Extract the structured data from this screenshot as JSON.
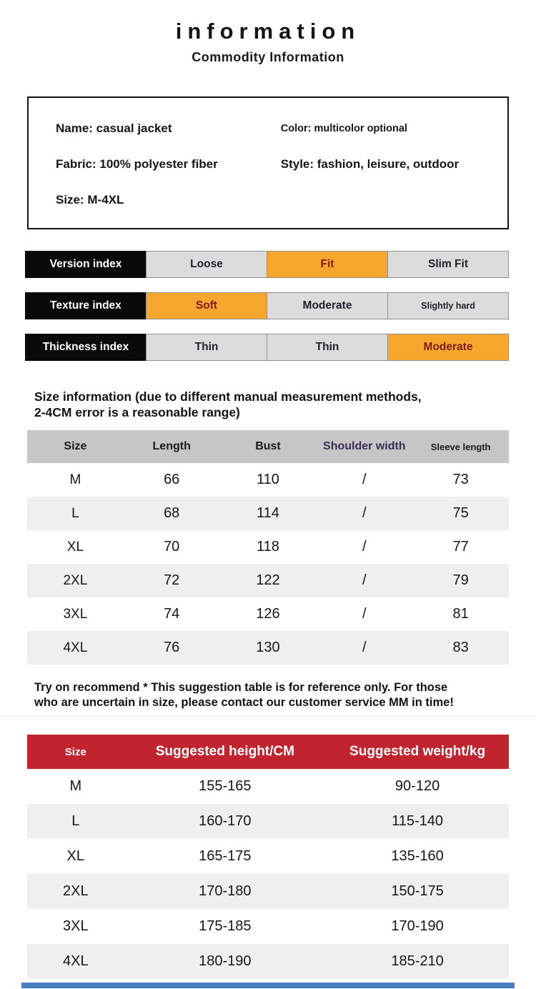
{
  "header": {
    "title": "information",
    "subtitle": "Commodity Information"
  },
  "product_info": {
    "name": "Name: casual jacket",
    "color": "Color: multicolor optional",
    "fabric": "Fabric: 100% polyester fiber",
    "style": "Style: fashion, leisure, outdoor",
    "size": "Size: M-4XL"
  },
  "indexes": [
    {
      "label": "Version index",
      "options": [
        {
          "text": "Loose",
          "highlight": false
        },
        {
          "text": "Fit",
          "highlight": true
        },
        {
          "text": "Slim Fit",
          "highlight": false
        }
      ]
    },
    {
      "label": "Texture index",
      "options": [
        {
          "text": "Soft",
          "highlight": true
        },
        {
          "text": "Moderate",
          "highlight": false
        },
        {
          "text": "Slightly hard",
          "highlight": false
        }
      ]
    },
    {
      "label": "Thickness index",
      "options": [
        {
          "text": "Thin",
          "highlight": false
        },
        {
          "text": "Thin",
          "highlight": false
        },
        {
          "text": "Moderate",
          "highlight": true
        }
      ]
    }
  ],
  "size_note": {
    "line1": "Size information (due to different manual measurement methods,",
    "line2": "2-4CM error is a reasonable range)"
  },
  "size_table": {
    "headers": [
      "Size",
      "Length",
      "Bust",
      "Shoulder width",
      "Sleeve length"
    ],
    "rows": [
      [
        "M",
        "66",
        "110",
        "/",
        "73"
      ],
      [
        "L",
        "68",
        "114",
        "/",
        "75"
      ],
      [
        "XL",
        "70",
        "118",
        "/",
        "77"
      ],
      [
        "2XL",
        "72",
        "122",
        "/",
        "79"
      ],
      [
        "3XL",
        "74",
        "126",
        "/",
        "81"
      ],
      [
        "4XL",
        "76",
        "130",
        "/",
        "83"
      ]
    ]
  },
  "try_on_note": {
    "line1": "Try on recommend * This suggestion table is for reference only. For those",
    "line2": "who are uncertain in size, please contact our customer service MM in time!"
  },
  "suggestion_table": {
    "headers": [
      "Size",
      "Suggested height/CM",
      "Suggested weight/kg"
    ],
    "rows": [
      [
        "M",
        "155-165",
        "90-120"
      ],
      [
        "L",
        "160-170",
        "115-140"
      ],
      [
        "XL",
        "165-175",
        "135-160"
      ],
      [
        "2XL",
        "170-180",
        "150-175"
      ],
      [
        "3XL",
        "175-185",
        "170-190"
      ],
      [
        "4XL",
        "180-190",
        "185-210"
      ]
    ]
  },
  "colors": {
    "highlight_orange": "#F7A62E",
    "highlight_text_maroon": "#7A1E1E",
    "index_label_bg": "#0A0A0A",
    "option_gray": "#DCDCDC",
    "table_header_gray": "#C6C6C6",
    "alt_row_gray": "#EFEFEF",
    "header_red": "#C2242F",
    "shoulder_header_purple": "#3D2C55",
    "footer_blue": "#4A7DBF"
  }
}
